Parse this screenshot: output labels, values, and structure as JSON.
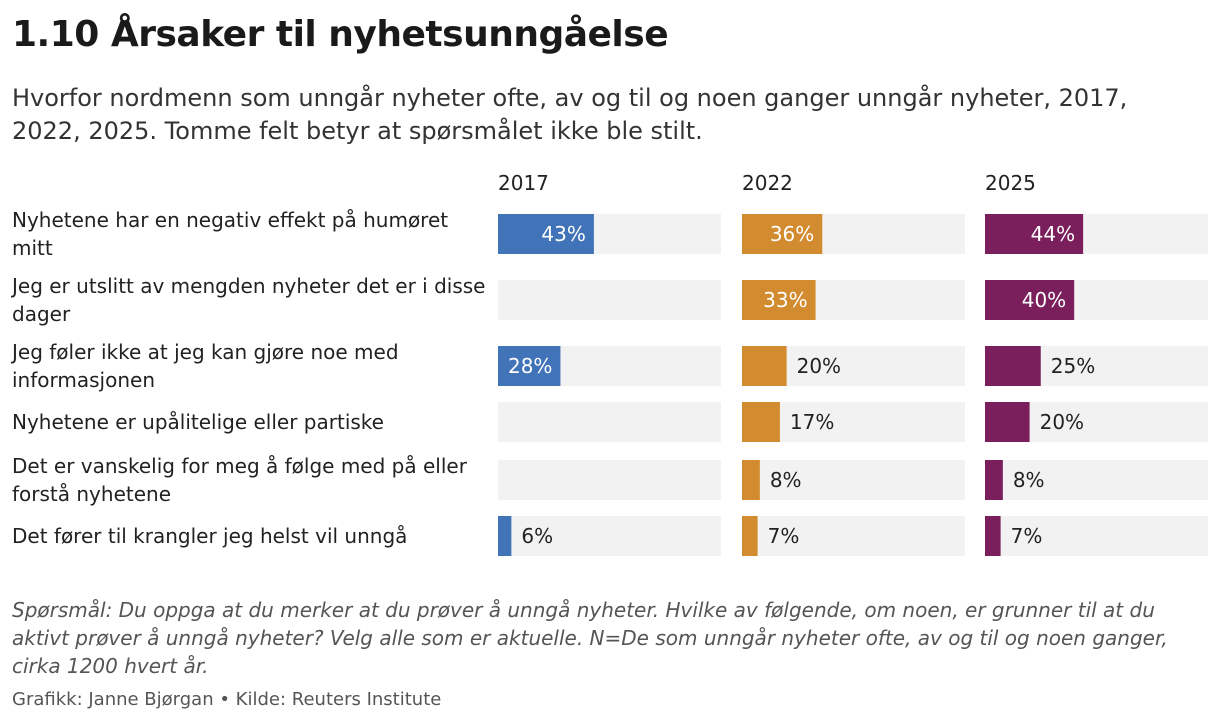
{
  "title": "1.10 Årsaker til nyhetsunngåelse",
  "subtitle": "Hvorfor nordmenn som unngår nyheter ofte, av og til og noen ganger unngår nyheter, 2017, 2022, 2025. Tomme felt betyr at spørsmålet ikke ble stilt.",
  "note": "Spørsmål: Du oppga at du merker at du prøver å unngå nyheter. Hvilke av følgende, om noen, er grunner til at du aktivt prøver å unngå nyheter? Velg alle som er aktuelle. N=De som unngår nyheter ofte, av og til og noen ganger, cirka 1200 hvert år.",
  "credit": "Grafikk: Janne Bjørgan • Kilde: Reuters Institute",
  "chart_data": {
    "type": "bar",
    "orientation": "horizontal",
    "layout": "small-multiples",
    "categories": [
      "Nyhetene har en negativ effekt på humøret mitt",
      "Jeg er utslitt av mengden nyheter det er i disse dager",
      "Jeg føler ikke at jeg kan gjøre noe med informasjonen",
      "Nyhetene er upålitelige eller partiske",
      "Det er vanskelig for meg å følge med på eller forstå nyhetene",
      "Det fører til krangler jeg helst vil unngå"
    ],
    "series": [
      {
        "name": "2017",
        "color": "#4073b8",
        "values": [
          43,
          null,
          28,
          null,
          null,
          6
        ]
      },
      {
        "name": "2022",
        "color": "#d38b2f",
        "values": [
          36,
          33,
          20,
          17,
          8,
          7
        ]
      },
      {
        "name": "2025",
        "color": "#7a1f5c",
        "values": [
          44,
          40,
          25,
          20,
          8,
          7
        ]
      }
    ],
    "value_suffix": "%",
    "xlim": [
      0,
      100
    ],
    "track_color": "#f2f2f2",
    "grid": false,
    "legend": "none"
  }
}
